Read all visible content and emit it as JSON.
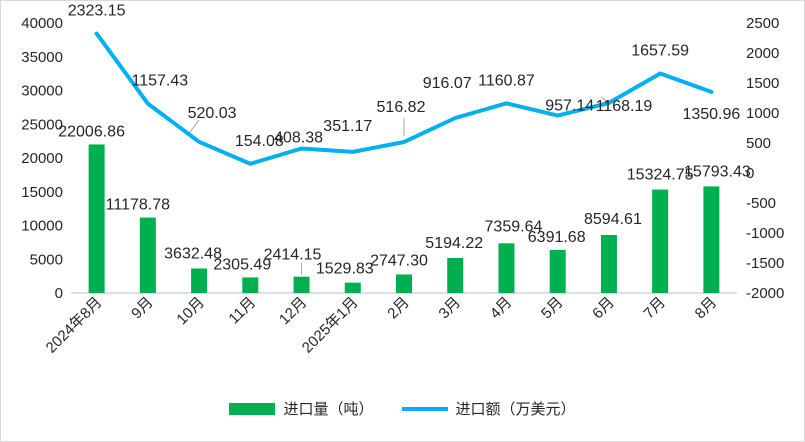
{
  "chart_data": {
    "type": "bar+line",
    "categories": [
      "2024年8月",
      "9月",
      "10月",
      "11月",
      "12月",
      "2025年1月",
      "2月",
      "3月",
      "4月",
      "5月",
      "6月",
      "7月",
      "8月"
    ],
    "series": [
      {
        "name": "进口量（吨）",
        "type": "bar",
        "axis": "left",
        "color": "#00B050",
        "values": [
          22006.86,
          11178.78,
          3632.48,
          2305.49,
          2414.15,
          1529.83,
          2747.3,
          5194.22,
          7359.64,
          6391.68,
          8594.61,
          15324.75,
          15793.43
        ],
        "labels": [
          "22006.86",
          "11178.78",
          "3632.48",
          "2305.49",
          "2414.15",
          "1529.83",
          "2747.30",
          "5194.22",
          "7359.64",
          "6391.68",
          "8594.61",
          "15324.75",
          "15793.43"
        ]
      },
      {
        "name": "进口额（万美元）",
        "type": "line",
        "axis": "right",
        "color": "#00B0F0",
        "values": [
          2323.15,
          1157.43,
          520.03,
          154.08,
          408.38,
          351.17,
          516.82,
          916.07,
          1160.87,
          957.14,
          1168.19,
          1657.59,
          1350.96
        ],
        "labels": [
          "2323.15",
          "1157.43",
          "520.03",
          "154.08",
          "408.38",
          "351.17",
          "516.82",
          "916.07",
          "1160.87",
          "957.14",
          "1168.19",
          "1657.59",
          "1350.96"
        ]
      }
    ],
    "y_left": {
      "min": 0,
      "max": 40000,
      "ticks": [
        "0",
        "5000",
        "10000",
        "15000",
        "20000",
        "25000",
        "30000",
        "35000",
        "40000"
      ]
    },
    "y_right": {
      "min": -2000,
      "max": 2500,
      "ticks": [
        "-2000",
        "-1500",
        "-1000",
        "-500",
        "0",
        "500",
        "1000",
        "1500",
        "2000",
        "2500"
      ]
    },
    "grid": false,
    "legend_position": "bottom"
  }
}
